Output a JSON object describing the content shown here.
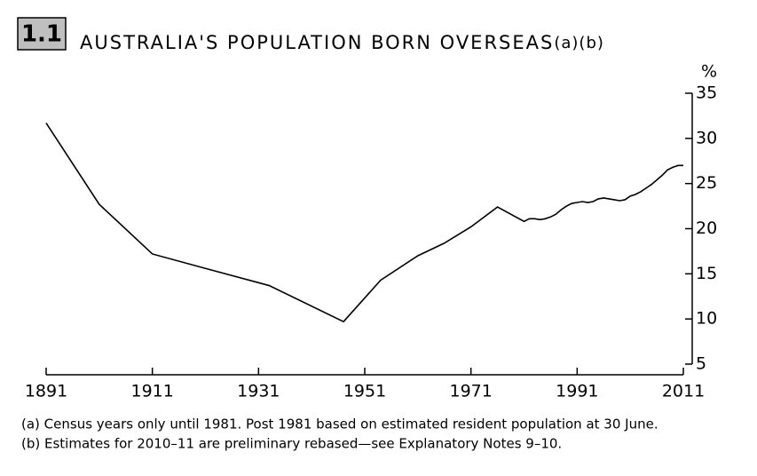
{
  "chart_data": {
    "type": "line",
    "figure_number": "1.1",
    "title": "AUSTRALIA'S POPULATION BORN OVERSEAS",
    "title_note": "(a)(b)",
    "y_unit": "%",
    "x": [
      1891,
      1901,
      1911,
      1921,
      1933,
      1947,
      1954,
      1961,
      1966,
      1971,
      1976,
      1981,
      1982,
      1983,
      1984,
      1985,
      1986,
      1987,
      1988,
      1989,
      1990,
      1991,
      1992,
      1993,
      1994,
      1995,
      1996,
      1997,
      1998,
      1999,
      2000,
      2001,
      2002,
      2003,
      2004,
      2005,
      2006,
      2007,
      2008,
      2009,
      2010,
      2011
    ],
    "series": [
      {
        "color": "#000000",
        "values": [
          31.7,
          22.7,
          17.2,
          15.6,
          13.7,
          9.7,
          14.3,
          17.0,
          18.4,
          20.2,
          22.4,
          20.8,
          21.1,
          21.1,
          21.0,
          21.1,
          21.3,
          21.6,
          22.1,
          22.5,
          22.8,
          22.9,
          23.0,
          22.9,
          23.0,
          23.3,
          23.4,
          23.3,
          23.2,
          23.1,
          23.2,
          23.6,
          23.8,
          24.1,
          24.5,
          24.9,
          25.4,
          25.9,
          26.5,
          26.8,
          27.0,
          27.0
        ]
      }
    ],
    "xlim": [
      1891,
      2011
    ],
    "xticks": [
      1891,
      1911,
      1931,
      1951,
      1971,
      1991,
      2011
    ],
    "ylim": [
      5,
      35
    ],
    "yticks": [
      5,
      10,
      15,
      20,
      25,
      30,
      35
    ],
    "notes": [
      "(a) Census years only until 1981. Post 1981 based on estimated resident population at 30 June.",
      "(b) Estimates for 2010–11 are preliminary rebased—see Explanatory Notes 9–10."
    ]
  }
}
